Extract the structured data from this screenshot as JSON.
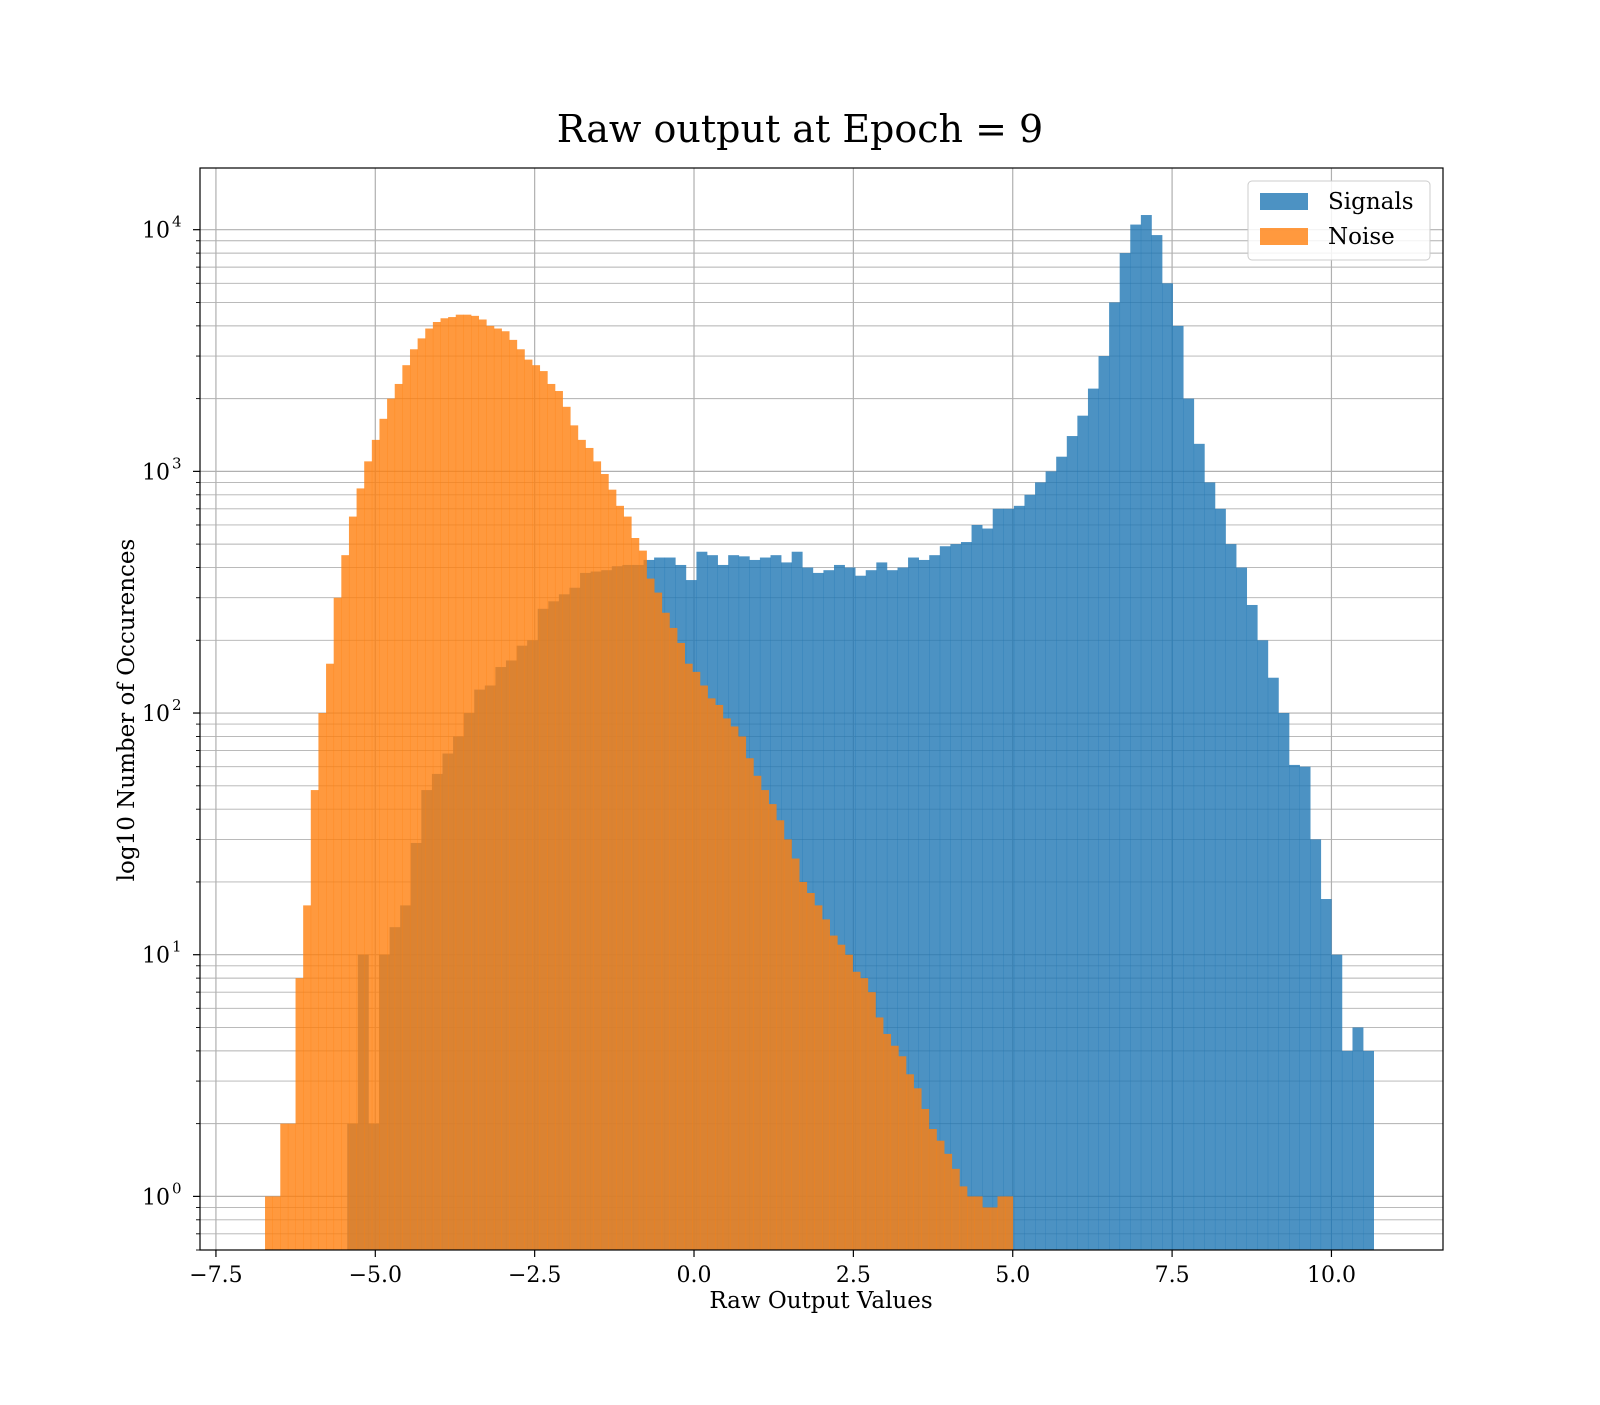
{
  "chart_data": {
    "type": "histogram",
    "title": "Raw output at Epoch = 9",
    "xlabel": "Raw Output Values",
    "ylabel": "log10 Number of Occurences",
    "xlim": [
      -7.75,
      11.75
    ],
    "ylim": [
      0.6,
      18000
    ],
    "yscale": "log",
    "grid": true,
    "legend_position": "top-right",
    "x_ticks": [
      {
        "value": -7.5,
        "label": "−7.5"
      },
      {
        "value": -5.0,
        "label": "−5.0"
      },
      {
        "value": -2.5,
        "label": "−2.5"
      },
      {
        "value": 0.0,
        "label": "0.0"
      },
      {
        "value": 2.5,
        "label": "2.5"
      },
      {
        "value": 5.0,
        "label": "5.0"
      },
      {
        "value": 7.5,
        "label": "7.5"
      },
      {
        "value": 10.0,
        "label": "10.0"
      }
    ],
    "y_ticks": [
      {
        "value": 1,
        "base": "10",
        "exponent": "0"
      },
      {
        "value": 10,
        "base": "10",
        "exponent": "1"
      },
      {
        "value": 100,
        "base": "10",
        "exponent": "2"
      },
      {
        "value": 1000,
        "base": "10",
        "exponent": "3"
      },
      {
        "value": 10000,
        "base": "10",
        "exponent": "4"
      }
    ],
    "series": [
      {
        "name": "Signals",
        "color": "#1f77b4",
        "opacity": 0.8,
        "bin_start": -5.44,
        "bin_width": 0.166,
        "counts": [
          2,
          10,
          2,
          10,
          13,
          16,
          29,
          48,
          56,
          68,
          80,
          100,
          125,
          130,
          155,
          165,
          190,
          200,
          270,
          290,
          310,
          330,
          380,
          385,
          390,
          405,
          410,
          410,
          430,
          440,
          440,
          410,
          355,
          465,
          450,
          410,
          450,
          445,
          430,
          440,
          450,
          420,
          465,
          400,
          380,
          390,
          410,
          400,
          370,
          390,
          420,
          390,
          400,
          440,
          430,
          450,
          490,
          500,
          510,
          600,
          580,
          700,
          700,
          720,
          800,
          900,
          1000,
          1150,
          1400,
          1700,
          2200,
          3000,
          5000,
          8000,
          10500,
          11500,
          9500,
          6000,
          4000,
          2000,
          1300,
          900,
          700,
          500,
          400,
          280,
          200,
          140,
          100,
          61,
          60,
          30,
          17,
          10,
          4,
          5,
          4
        ]
      },
      {
        "name": "Noise",
        "color": "#ff7f0e",
        "opacity": 0.8,
        "bin_start": -6.73,
        "bin_width": 0.1197,
        "counts": [
          1,
          1,
          2,
          2,
          8,
          16,
          48,
          100,
          160,
          300,
          450,
          650,
          850,
          1100,
          1350,
          1650,
          2000,
          2300,
          2750,
          3200,
          3550,
          3900,
          4150,
          4300,
          4350,
          4450,
          4450,
          4400,
          4250,
          4000,
          3900,
          3800,
          3500,
          3200,
          2900,
          2750,
          2600,
          2300,
          2150,
          1850,
          1550,
          1350,
          1250,
          1100,
          975,
          840,
          720,
          650,
          530,
          470,
          360,
          315,
          260,
          225,
          195,
          160,
          148,
          130,
          115,
          108,
          95,
          88,
          80,
          65,
          55,
          48,
          42,
          36,
          30,
          25,
          20,
          18,
          16,
          14,
          12,
          11,
          10,
          8.5,
          8,
          7,
          5.5,
          4.7,
          4.2,
          3.8,
          3.2,
          2.8,
          2.3,
          1.9,
          1.7,
          1.5,
          1.3,
          1.1,
          1,
          1,
          0.9,
          0.9,
          1,
          1
        ]
      }
    ]
  }
}
